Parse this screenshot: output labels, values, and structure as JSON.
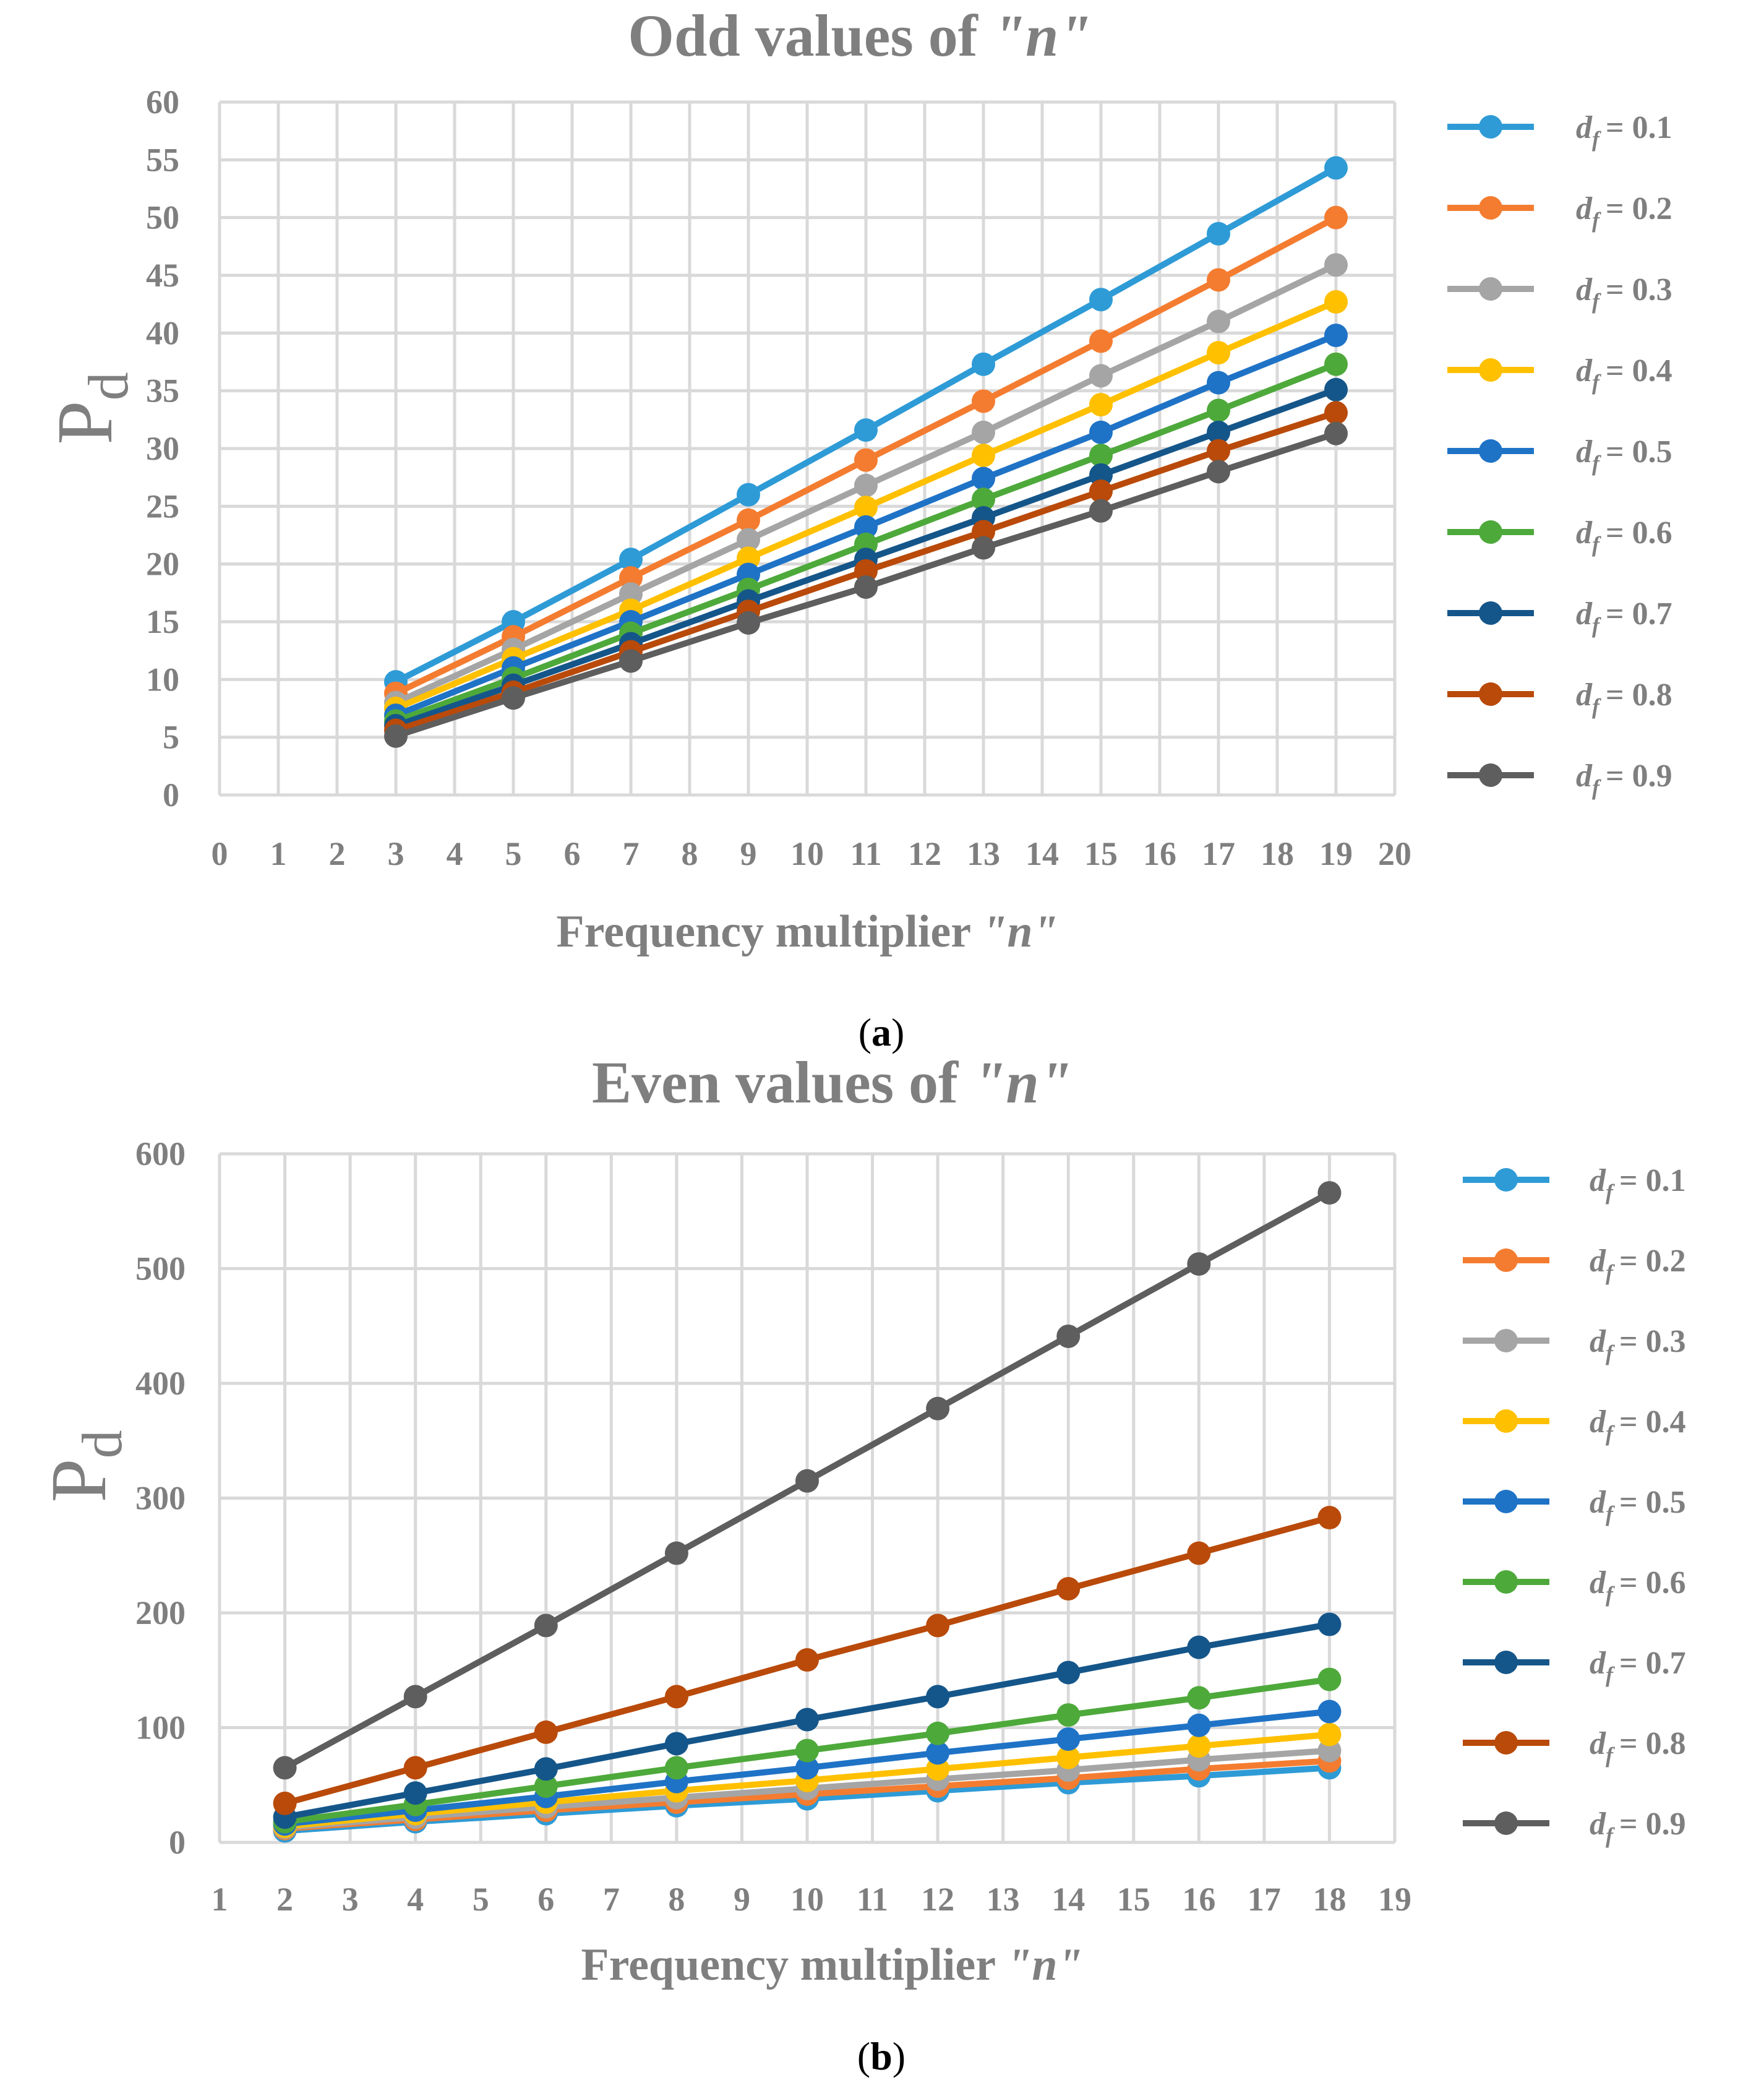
{
  "chart_data": [
    {
      "type": "line",
      "title_prefix": "Odd values of ",
      "title_var": "\"n\"",
      "title": "Odd values of \"n\"",
      "xlabel_prefix": "Frequency  multiplier  ",
      "xlabel_var": "\"n\"",
      "xlabel": "Frequency multiplier \"n\"",
      "ylabel_main": "P",
      "ylabel_sub": "d",
      "ylabel": "Pd",
      "xlim": [
        0,
        20
      ],
      "ylim": [
        0,
        60
      ],
      "x_ticks": [
        "0",
        "1",
        "2",
        "3",
        "4",
        "5",
        "6",
        "7",
        "8",
        "9",
        "10",
        "11",
        "12",
        "13",
        "14",
        "15",
        "16",
        "17",
        "18",
        "19",
        "20"
      ],
      "y_ticks": [
        "0",
        "5",
        "10",
        "15",
        "20",
        "25",
        "30",
        "35",
        "40",
        "45",
        "50",
        "55",
        "60"
      ],
      "grid": true,
      "legend_position": "right",
      "caption_open": "(",
      "caption_letter": "a",
      "caption_close": ")",
      "x": [
        3,
        5,
        7,
        9,
        11,
        13,
        15,
        17,
        19
      ],
      "series": [
        {
          "name": "d_f = 0.1",
          "legend_value": "= 0.1",
          "color": "#2E9BD6",
          "values": [
            9.8,
            15.0,
            20.4,
            26.0,
            31.6,
            37.3,
            42.9,
            48.6,
            54.3
          ]
        },
        {
          "name": "d_f = 0.2",
          "legend_value": "= 0.2",
          "color": "#F47C30",
          "values": [
            8.8,
            13.7,
            18.8,
            23.8,
            29.0,
            34.1,
            39.3,
            44.6,
            50.0
          ]
        },
        {
          "name": "d_f = 0.3",
          "legend_value": "= 0.3",
          "color": "#A5A5A5",
          "values": [
            8.0,
            12.6,
            17.4,
            22.1,
            26.8,
            31.4,
            36.3,
            41.0,
            45.9
          ]
        },
        {
          "name": "d_f = 0.4",
          "legend_value": "= 0.4",
          "color": "#FFC000",
          "values": [
            7.5,
            11.8,
            16.0,
            20.5,
            24.9,
            29.4,
            33.8,
            38.3,
            42.7
          ]
        },
        {
          "name": "d_f = 0.5",
          "legend_value": "= 0.5",
          "color": "#1F73C6",
          "values": [
            6.9,
            11.0,
            15.0,
            19.1,
            23.2,
            27.4,
            31.4,
            35.7,
            39.8
          ]
        },
        {
          "name": "d_f = 0.6",
          "legend_value": "= 0.6",
          "color": "#4EA93B",
          "values": [
            6.4,
            10.1,
            14.0,
            17.8,
            21.7,
            25.6,
            29.4,
            33.3,
            37.3
          ]
        },
        {
          "name": "d_f = 0.7",
          "legend_value": "= 0.7",
          "color": "#15568A",
          "values": [
            6.0,
            9.5,
            13.1,
            16.8,
            20.4,
            24.0,
            27.7,
            31.4,
            35.1
          ]
        },
        {
          "name": "d_f = 0.8",
          "legend_value": "= 0.8",
          "color": "#B94A0A",
          "values": [
            5.6,
            8.9,
            12.4,
            15.9,
            19.4,
            22.8,
            26.3,
            29.8,
            33.1
          ]
        },
        {
          "name": "d_f = 0.9",
          "legend_value": "= 0.9",
          "color": "#5E5E5E",
          "values": [
            5.1,
            8.4,
            11.6,
            14.9,
            18.0,
            21.4,
            24.6,
            28.0,
            31.3
          ]
        }
      ]
    },
    {
      "type": "line",
      "title_prefix": "Even values of ",
      "title_var": "\"n\"",
      "title": "Even values of \"n\"",
      "xlabel_prefix": "Frequency  multiplier  ",
      "xlabel_var": "\"n\"",
      "xlabel": "Frequency multiplier \"n\"",
      "ylabel_main": "P",
      "ylabel_sub": "d",
      "ylabel": "Pd",
      "xlim": [
        1,
        19
      ],
      "ylim": [
        0,
        600
      ],
      "x_ticks": [
        "1",
        "2",
        "3",
        "4",
        "5",
        "6",
        "7",
        "8",
        "9",
        "10",
        "11",
        "12",
        "13",
        "14",
        "15",
        "16",
        "17",
        "18",
        "19"
      ],
      "y_ticks": [
        "0",
        "100",
        "200",
        "300",
        "400",
        "500",
        "600"
      ],
      "grid": true,
      "legend_position": "right",
      "caption_open": "(",
      "caption_letter": "b",
      "caption_close": ")",
      "x": [
        2,
        4,
        6,
        8,
        10,
        12,
        14,
        16,
        18
      ],
      "series": [
        {
          "name": "d_f = 0.1",
          "legend_value": "= 0.1",
          "color": "#2E9BD6",
          "values": [
            10,
            18,
            25,
            32,
            38,
            45,
            52,
            58,
            65
          ]
        },
        {
          "name": "d_f = 0.2",
          "legend_value": "= 0.2",
          "color": "#F47C30",
          "values": [
            12,
            20,
            28,
            35,
            42,
            49,
            56,
            64,
            71
          ]
        },
        {
          "name": "d_f = 0.3",
          "legend_value": "= 0.3",
          "color": "#A5A5A5",
          "values": [
            13,
            22,
            31,
            39,
            47,
            55,
            63,
            72,
            80
          ]
        },
        {
          "name": "d_f = 0.4",
          "legend_value": "= 0.4",
          "color": "#FFC000",
          "values": [
            14,
            25,
            35,
            45,
            54,
            64,
            74,
            84,
            94
          ]
        },
        {
          "name": "d_f = 0.5",
          "legend_value": "= 0.5",
          "color": "#1F73C6",
          "values": [
            16,
            28,
            40,
            53,
            65,
            78,
            90,
            102,
            114
          ]
        },
        {
          "name": "d_f = 0.6",
          "legend_value": "= 0.6",
          "color": "#4EA93B",
          "values": [
            18,
            33,
            49,
            65,
            80,
            95,
            111,
            126,
            142
          ]
        },
        {
          "name": "d_f = 0.7",
          "legend_value": "= 0.7",
          "color": "#15568A",
          "values": [
            22,
            43,
            64,
            86,
            107,
            127,
            148,
            170,
            190
          ]
        },
        {
          "name": "d_f = 0.8",
          "legend_value": "= 0.8",
          "color": "#B94A0A",
          "values": [
            34,
            65,
            96,
            127,
            159,
            189,
            221,
            252,
            283
          ]
        },
        {
          "name": "d_f = 0.9",
          "legend_value": "= 0.9",
          "color": "#5E5E5E",
          "values": [
            65,
            127,
            189,
            252,
            315,
            378,
            441,
            504,
            566
          ]
        }
      ]
    }
  ]
}
